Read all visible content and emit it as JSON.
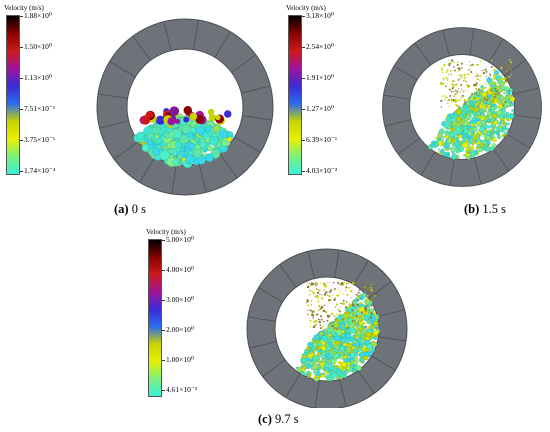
{
  "panels": [
    {
      "id": "a",
      "caption_letter": "(a)",
      "caption_time": "0 s",
      "colorbar": {
        "title": "Velocity (m/s)",
        "ticks": [
          "1.88×10⁰",
          "1.50×10⁰",
          "1.13×10⁰",
          "7.51×10⁻¹",
          "3.75×10⁻¹",
          "1.74×10⁻⁴"
        ]
      }
    },
    {
      "id": "b",
      "caption_letter": "(b)",
      "caption_time": "1.5 s",
      "colorbar": {
        "title": "Velocity (m/s)",
        "ticks": [
          "3.18×10⁰",
          "2.54×10⁰",
          "1.91×10⁰",
          "1.27×10⁰",
          "6.39×10⁻¹",
          "4.03×10⁻³"
        ]
      }
    },
    {
      "id": "c",
      "caption_letter": "(c)",
      "caption_time": "9.7 s",
      "colorbar": {
        "title": "Velocity (m/s)",
        "ticks": [
          "5.00×10⁰",
          "4.00×10⁰",
          "3.00×10⁰",
          "2.00×10⁰",
          "1.00×10⁰",
          "4.61×10⁻³"
        ]
      }
    }
  ],
  "colors": {
    "colormap": [
      "#000000",
      "#8b0000",
      "#cc1a1a",
      "#a0139c",
      "#3a2bd6",
      "#2d6cf0",
      "#c6d400",
      "#e8f000",
      "#7cf07a",
      "#38f2d8"
    ],
    "drum_shell": "#6e737a",
    "drum_segment_line": "#4a4e54",
    "particle_bed": "#3fe7d2"
  }
}
